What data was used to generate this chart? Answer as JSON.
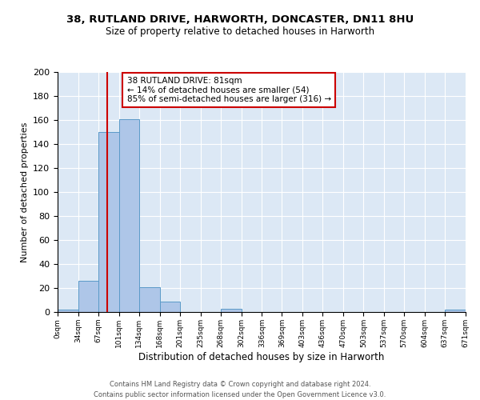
{
  "title": "38, RUTLAND DRIVE, HARWORTH, DONCASTER, DN11 8HU",
  "subtitle": "Size of property relative to detached houses in Harworth",
  "xlabel": "Distribution of detached houses by size in Harworth",
  "ylabel": "Number of detached properties",
  "bin_edges": [
    0,
    34,
    67,
    101,
    134,
    168,
    201,
    235,
    268,
    302,
    336,
    369,
    403,
    436,
    470,
    503,
    537,
    570,
    604,
    637,
    671
  ],
  "bin_labels": [
    "0sqm",
    "34sqm",
    "67sqm",
    "101sqm",
    "134sqm",
    "168sqm",
    "201sqm",
    "235sqm",
    "268sqm",
    "302sqm",
    "336sqm",
    "369sqm",
    "403sqm",
    "436sqm",
    "470sqm",
    "503sqm",
    "537sqm",
    "570sqm",
    "604sqm",
    "637sqm",
    "671sqm"
  ],
  "counts": [
    2,
    26,
    150,
    161,
    21,
    9,
    0,
    0,
    3,
    0,
    0,
    0,
    0,
    0,
    0,
    0,
    0,
    0,
    0,
    2
  ],
  "bar_color": "#aec6e8",
  "bar_edge_color": "#5a9ac8",
  "property_line_x": 81,
  "property_line_color": "#cc0000",
  "annotation_title": "38 RUTLAND DRIVE: 81sqm",
  "annotation_line1": "← 14% of detached houses are smaller (54)",
  "annotation_line2": "85% of semi-detached houses are larger (316) →",
  "annotation_box_color": "#cc0000",
  "ylim": [
    0,
    200
  ],
  "yticks": [
    0,
    20,
    40,
    60,
    80,
    100,
    120,
    140,
    160,
    180,
    200
  ],
  "background_color": "#dce8f5",
  "footer_line1": "Contains HM Land Registry data © Crown copyright and database right 2024.",
  "footer_line2": "Contains public sector information licensed under the Open Government Licence v3.0."
}
